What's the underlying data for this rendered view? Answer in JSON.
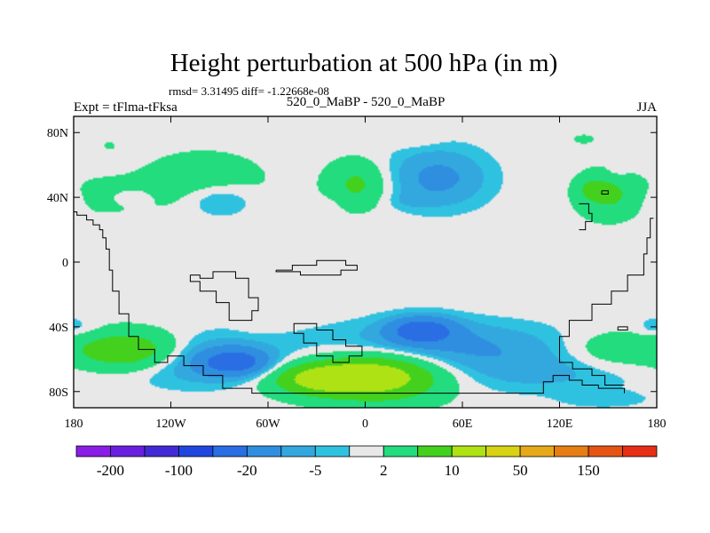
{
  "chart_data": {
    "type": "heatmap",
    "title": "Height perturbation at 500 hPa (in m)",
    "subtitle_stats": "rmsd= 3.31495 diff= -1.22668e-08",
    "left_label": "Expt = tFlma-tFksa",
    "center_label": "520_0_MaBP - 520_0_MaBP",
    "right_label": "JJA",
    "x_ticks": [
      {
        "value": -180,
        "label": "180"
      },
      {
        "value": -120,
        "label": "120W"
      },
      {
        "value": -60,
        "label": "60W"
      },
      {
        "value": 0,
        "label": "0"
      },
      {
        "value": 60,
        "label": "60E"
      },
      {
        "value": 120,
        "label": "120E"
      },
      {
        "value": 180,
        "label": "180"
      }
    ],
    "y_ticks": [
      {
        "value": 80,
        "label": "80N"
      },
      {
        "value": 40,
        "label": "40N"
      },
      {
        "value": 0,
        "label": "0"
      },
      {
        "value": -40,
        "label": "40S"
      },
      {
        "value": -80,
        "label": "80S"
      }
    ],
    "xlim": [
      -180,
      180
    ],
    "ylim": [
      -90,
      90
    ],
    "colorbar": {
      "colors": [
        "#8a1ee6",
        "#6a1fe0",
        "#4229d6",
        "#1f47e0",
        "#2a6ee4",
        "#2f8ee0",
        "#32a8df",
        "#2fc2e0",
        "#e8e8e8",
        "#22dc7e",
        "#44d11e",
        "#aee214",
        "#d8d214",
        "#e6aa18",
        "#e67e14",
        "#e65414",
        "#e62e14"
      ],
      "labels": [
        {
          "after_box": 1,
          "text": "-200"
        },
        {
          "after_box": 3,
          "text": "-100"
        },
        {
          "after_box": 5,
          "text": "-20"
        },
        {
          "after_box": 7,
          "text": "-5"
        },
        {
          "after_box": 9,
          "text": "2"
        },
        {
          "after_box": 11,
          "text": "10"
        },
        {
          "after_box": 13,
          "text": "50"
        },
        {
          "after_box": 15,
          "text": "150"
        }
      ]
    },
    "anomalies": [
      {
        "lon": 155,
        "lat": 55,
        "dlon": 9,
        "dlat": 5,
        "value": -3
      },
      {
        "lon": -158,
        "lat": 72,
        "dlon": 5,
        "dlat": 3,
        "value": 3
      },
      {
        "lon": -162,
        "lat": 41,
        "dlon": 28,
        "dlat": 12,
        "value": 4
      },
      {
        "lon": -145,
        "lat": 40,
        "dlon": 13,
        "dlat": 5,
        "value": -4
      },
      {
        "lon": -100,
        "lat": 50,
        "dlon": 38,
        "dlat": 18,
        "value": 6
      },
      {
        "lon": -90,
        "lat": 38,
        "dlon": 20,
        "dlat": 10,
        "value": -8
      },
      {
        "lon": -25,
        "lat": 34,
        "dlon": 10,
        "dlat": 6,
        "value": -3
      },
      {
        "lon": -5,
        "lat": 48,
        "dlon": 18,
        "dlat": 14,
        "value": 12
      },
      {
        "lon": 45,
        "lat": 52,
        "dlon": 30,
        "dlat": 18,
        "value": -12
      },
      {
        "lon": 28,
        "lat": 38,
        "dlon": 15,
        "dlat": 5,
        "value": -3
      },
      {
        "lon": 30,
        "lat": 76,
        "dlon": 16,
        "dlat": 5,
        "value": 3
      },
      {
        "lon": 150,
        "lat": 42,
        "dlon": 18,
        "dlat": 14,
        "value": 12
      },
      {
        "lon": 178,
        "lat": 38,
        "dlon": 10,
        "dlat": 10,
        "value": -3
      },
      {
        "lon": 135,
        "lat": 76,
        "dlon": 10,
        "dlat": 4,
        "value": 3
      },
      {
        "lon": -175,
        "lat": -40,
        "dlon": 12,
        "dlat": 6,
        "value": -3
      },
      {
        "lon": -145,
        "lat": -55,
        "dlon": 34,
        "dlat": 12,
        "value": 22
      },
      {
        "lon": -105,
        "lat": -60,
        "dlon": 46,
        "dlat": 15,
        "value": -12
      },
      {
        "lon": -80,
        "lat": -62,
        "dlon": 20,
        "dlat": 8,
        "value": -22
      },
      {
        "lon": -30,
        "lat": -72,
        "dlon": 30,
        "dlat": 10,
        "value": 22
      },
      {
        "lon": 10,
        "lat": -70,
        "dlon": 38,
        "dlat": 15,
        "value": 28
      },
      {
        "lon": -65,
        "lat": -38,
        "dlon": 12,
        "dlat": 5,
        "value": 3
      },
      {
        "lon": 45,
        "lat": -52,
        "dlon": 70,
        "dlat": 15,
        "value": -12
      },
      {
        "lon": 35,
        "lat": -42,
        "dlon": 20,
        "dlat": 8,
        "value": -25
      },
      {
        "lon": 110,
        "lat": -68,
        "dlon": 60,
        "dlat": 13,
        "value": -6
      },
      {
        "lon": 150,
        "lat": -55,
        "dlon": 28,
        "dlat": 12,
        "value": 7
      },
      {
        "lon": 176,
        "lat": -40,
        "dlon": 8,
        "dlat": 6,
        "value": -3
      },
      {
        "lon": 148,
        "lat": -85,
        "dlon": 26,
        "dlat": 5,
        "value": -4
      },
      {
        "lon": 140,
        "lat": 45,
        "dlon": 8,
        "dlat": 6,
        "value": 8
      }
    ]
  }
}
